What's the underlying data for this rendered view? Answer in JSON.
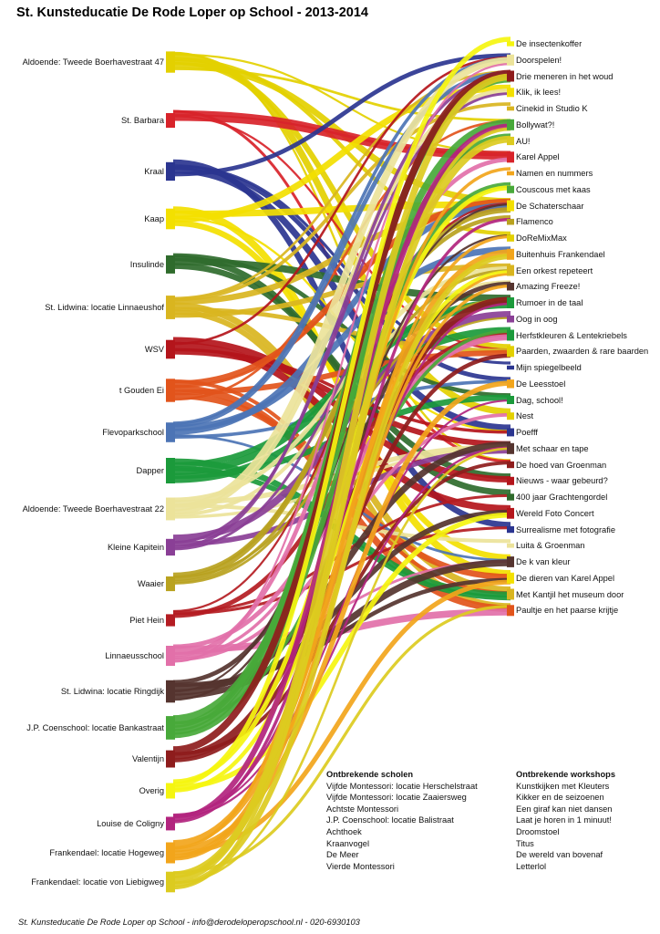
{
  "title": "St. Kunsteducatie De Rode Loper op School - 2013-2014",
  "schools": [
    {
      "name": "Aldoende: Tweede Boerhavestraat 47",
      "color": "#e3d000"
    },
    {
      "name": "St. Barbara",
      "color": "#d8232a"
    },
    {
      "name": "Kraal",
      "color": "#2b3590"
    },
    {
      "name": "Kaap",
      "color": "#f3e000"
    },
    {
      "name": "Insulinde",
      "color": "#2f6b2c"
    },
    {
      "name": "St. Lidwina: locatie Linnaeushof",
      "color": "#d9b51f"
    },
    {
      "name": "WSV",
      "color": "#b4151b"
    },
    {
      "name": "t Gouden Ei",
      "color": "#e2541b"
    },
    {
      "name": "Flevoparkschool",
      "color": "#4c74b5"
    },
    {
      "name": "Dapper",
      "color": "#1b9a3b"
    },
    {
      "name": "Aldoende: Tweede Boerhavestraat 22",
      "color": "#ece39a"
    },
    {
      "name": "Kleine Kapitein",
      "color": "#8a3f96"
    },
    {
      "name": "Waaier",
      "color": "#b9a21f"
    },
    {
      "name": "Piet Hein",
      "color": "#b41c22"
    },
    {
      "name": "Linnaeusschool",
      "color": "#e270a9"
    },
    {
      "name": "St. Lidwina: locatie Ringdijk",
      "color": "#55342f"
    },
    {
      "name": "J.P. Coenschool: locatie Bankastraat",
      "color": "#48a93a"
    },
    {
      "name": "Valentijn",
      "color": "#8e1c1c"
    },
    {
      "name": "Overig",
      "color": "#f5f510"
    },
    {
      "name": "Louise de Coligny",
      "color": "#b2247e"
    },
    {
      "name": "Frankendael: locatie Hogeweg",
      "color": "#f2a51b"
    },
    {
      "name": "Frankendael: locatie von Liebigweg",
      "color": "#dccb1f"
    }
  ],
  "workshops": [
    "De insectenkoffer",
    "Doorspelen!",
    "Drie meneren in het woud",
    "Klik, ik lees!",
    "Cinekid in Studio K",
    "Bollywat?!",
    "AU!",
    "Karel Appel",
    "Namen en nummers",
    "Couscous met kaas",
    "De Schaterschaar",
    "Flamenco",
    "DoReMixMax",
    "Buitenhuis Frankendael",
    "Een orkest repeteert",
    "Amazing Freeze!",
    "Rumoer in de taal",
    "Oog in oog",
    "Herfstkleuren & Lentekriebels",
    "Paarden, zwaarden & rare baarden",
    "Mijn spiegelbeeld",
    "De Leesstoel",
    "Dag, school!",
    "Nest",
    "Poefff",
    "Met schaar en tape",
    "De hoed van Groenman",
    "Nieuws - waar gebeurd?",
    "400 jaar Grachtengordel",
    "Wereld Foto Concert",
    "Surrealisme met fotografie",
    "Luita & Groenman",
    "De k van kleur",
    "De dieren van Karel Appel",
    "Met Kantjil het museum door",
    "Paultje en het paarse krijtje"
  ],
  "missing_schools": {
    "heading": "Ontbrekende scholen",
    "items": [
      "Vijfde Montessori: locatie Herschelstraat",
      "Vijfde Montessori: locatie Zaaiersweg",
      "Achtste Montessori",
      "J.P. Coenschool: locatie Balistraat",
      "Achthoek",
      "Kraanvogel",
      "De Meer",
      "Vierde Montessori"
    ]
  },
  "missing_workshops": {
    "heading": "Ontbrekende workshops",
    "items": [
      "Kunstkijken met Kleuters",
      "Kikker en de seizoenen",
      "Een giraf kan niet dansen",
      "Laat je horen in 1 minuut!",
      "Droomstoel",
      "Titus",
      "De wereld van bovenaf",
      "Letterlol"
    ]
  },
  "footer": "St. Kunsteducatie De Rode Loper op School - info@derodeloperopschool.nl - 020-6930103"
}
